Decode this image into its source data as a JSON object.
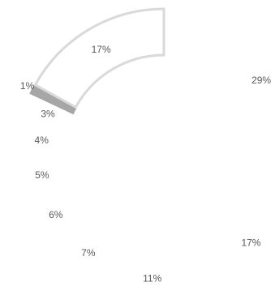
{
  "chart_data": {
    "type": "pie",
    "variant": "doughnut",
    "title": "",
    "values": [
      29,
      17,
      11,
      7,
      6,
      5,
      4,
      3,
      1,
      17
    ],
    "labels": [
      "29%",
      "17%",
      "11%",
      "7%",
      "6%",
      "5%",
      "4%",
      "3%",
      "1%",
      "17%"
    ],
    "colors": [
      "#ffffff",
      "#ffffff",
      "#ffffff",
      "#ffffff",
      "#ffffff",
      "#ffffff",
      "#ffffff",
      "#ffffff",
      "#a6a6a6",
      "#ffffff"
    ],
    "outline_colors": [
      "none",
      "none",
      "none",
      "none",
      "none",
      "none",
      "none",
      "none",
      "#a6a6a6",
      "#d9d9d9"
    ],
    "legend": "none"
  }
}
